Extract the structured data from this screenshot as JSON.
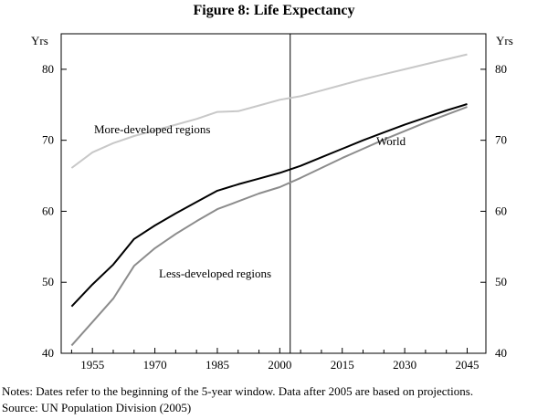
{
  "figure": {
    "title": "Figure 8: Life Expectancy",
    "notes": "Notes:   Dates refer to the beginning of the 5-year window. Data after 2005 are based on projections.",
    "source": "Source: UN Population Division (2005)"
  },
  "chart_data": {
    "type": "line",
    "title": "Figure 8: Life Expectancy",
    "ylabel_left": "Yrs",
    "ylabel_right": "Yrs",
    "xlim": [
      1947.5,
      2049.5
    ],
    "ylim": [
      40,
      85
    ],
    "yticks": [
      40,
      50,
      60,
      70,
      80
    ],
    "xticks": [
      1955,
      1970,
      1985,
      2000,
      2015,
      2030,
      2045
    ],
    "vertical_line_x": 2002.5,
    "x": [
      1950,
      1955,
      1960,
      1965,
      1970,
      1975,
      1980,
      1985,
      1990,
      1995,
      2000,
      2005,
      2010,
      2015,
      2020,
      2025,
      2030,
      2035,
      2040,
      2045
    ],
    "series": [
      {
        "name": "More-developed regions",
        "label": "More-developed regions",
        "color": "#c8c8c8",
        "values": [
          66.1,
          68.3,
          69.6,
          70.6,
          71.4,
          72.2,
          73.0,
          74.0,
          74.1,
          74.9,
          75.7,
          76.2,
          77.0,
          77.8,
          78.6,
          79.3,
          80.0,
          80.7,
          81.4,
          82.1
        ]
      },
      {
        "name": "World",
        "label": "World",
        "color": "#000000",
        "values": [
          46.6,
          49.7,
          52.5,
          56.1,
          58.0,
          59.7,
          61.3,
          62.9,
          63.8,
          64.6,
          65.4,
          66.4,
          67.6,
          68.8,
          70.0,
          71.1,
          72.2,
          73.2,
          74.2,
          75.1
        ]
      },
      {
        "name": "Less-developed regions",
        "label": "Less-developed regions",
        "color": "#8c8c8c",
        "values": [
          41.1,
          44.4,
          47.7,
          52.3,
          54.8,
          56.8,
          58.6,
          60.3,
          61.4,
          62.5,
          63.4,
          64.7,
          66.1,
          67.5,
          68.8,
          70.1,
          71.3,
          72.5,
          73.6,
          74.7
        ]
      }
    ]
  }
}
